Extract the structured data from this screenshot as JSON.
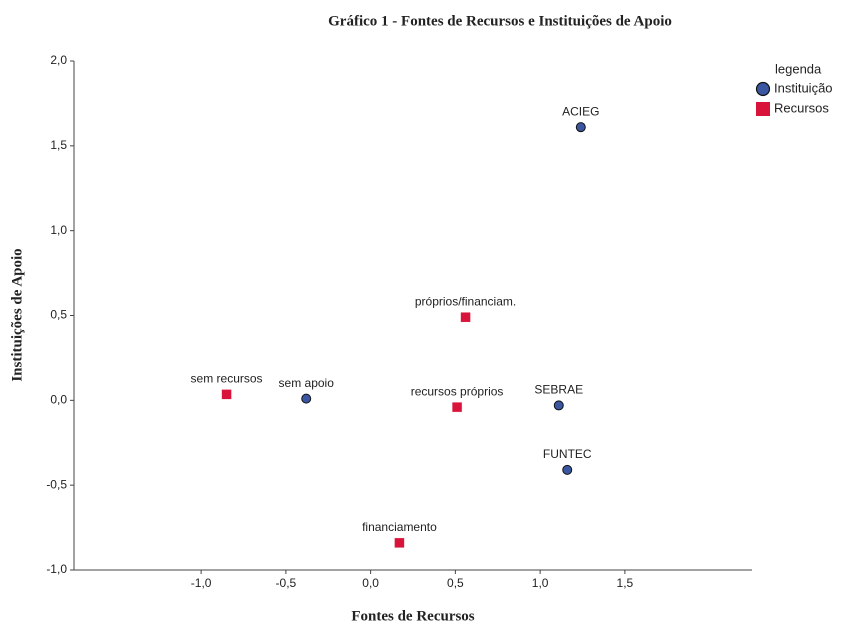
{
  "chart_data": {
    "type": "scatter",
    "title": "Gráfico 1 - Fontes de Recursos e Instituições de Apoio",
    "x_label": "Fontes de Recursos",
    "y_label": "Instituições de Apoio",
    "legend_title": "legenda",
    "legend": "right",
    "xlim": [
      -1.75,
      2.25
    ],
    "ylim": [
      -1.0,
      2.0
    ],
    "xticks": [
      {
        "value": -1,
        "label": "-1,0"
      },
      {
        "value": -0.5,
        "label": "-0,5"
      },
      {
        "value": 0,
        "label": "0,0"
      },
      {
        "value": 0.5,
        "label": "0,5"
      },
      {
        "value": 1,
        "label": "1,0"
      },
      {
        "value": 1.5,
        "label": "1,5"
      }
    ],
    "yticks": [
      {
        "value": -1,
        "label": "-1,0"
      },
      {
        "value": -0.5,
        "label": "-0,5"
      },
      {
        "value": 0,
        "label": "0,0"
      },
      {
        "value": 0.5,
        "label": "0,5"
      },
      {
        "value": 1,
        "label": "1,0"
      },
      {
        "value": 1.5,
        "label": "1,5"
      },
      {
        "value": 2,
        "label": "2,0"
      }
    ],
    "series": [
      {
        "name": "Instituição",
        "color": "#3a56a0",
        "marker": "circle",
        "labels": [
          "ACIEG",
          "SEBRAE",
          "FUNTEC",
          "sem apoio"
        ],
        "x": [
          1.24,
          1.11,
          1.16,
          -0.38
        ],
        "values": [
          1.61,
          -0.03,
          -0.41,
          0.01
        ]
      },
      {
        "name": "Recursos",
        "color": "#d8143a",
        "marker": "square",
        "labels": [
          "sem recursos",
          "próprios/financiam.",
          "recursos próprios",
          "financiamento"
        ],
        "x": [
          -0.85,
          0.56,
          0.51,
          0.17
        ],
        "values": [
          0.035,
          0.49,
          -0.04,
          -0.84
        ]
      }
    ]
  }
}
